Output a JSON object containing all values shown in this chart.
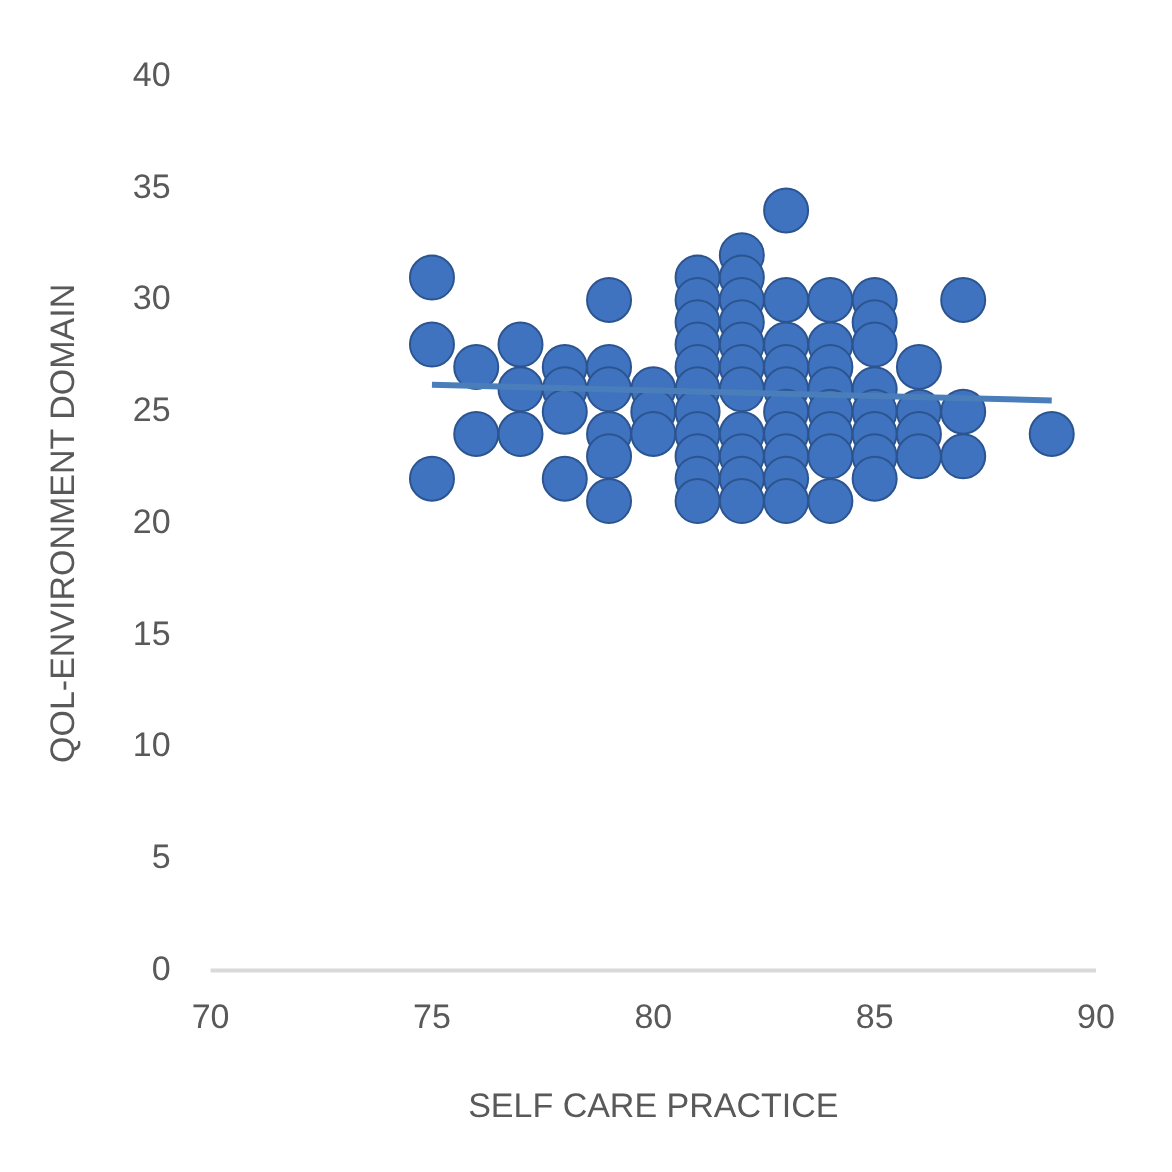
{
  "chart_data": {
    "type": "scatter",
    "xlabel": "SELF CARE PRACTICE",
    "ylabel": "QOL-ENVIRONMENT DOMAIN",
    "xlim": [
      70,
      90
    ],
    "xticks": [
      70,
      75,
      80,
      85,
      90
    ],
    "ylim": [
      0,
      40
    ],
    "yticks": [
      0,
      5,
      10,
      15,
      20,
      25,
      30,
      35,
      40
    ],
    "grid": false,
    "legend": false,
    "marker": "circle",
    "series": [
      {
        "color": "#3f73c0",
        "x": [
          75,
          75,
          75,
          76,
          76,
          77,
          77,
          77,
          78,
          78,
          78,
          78,
          79,
          79,
          79,
          79,
          79,
          79,
          80,
          80,
          80,
          81,
          81,
          81,
          81,
          81,
          81,
          81,
          81,
          81,
          81,
          81,
          82,
          82,
          82,
          82,
          82,
          82,
          82,
          82,
          82,
          82,
          82,
          83,
          83,
          83,
          83,
          83,
          83,
          83,
          83,
          83,
          83,
          84,
          84,
          84,
          84,
          84,
          84,
          84,
          84,
          85,
          85,
          85,
          85,
          85,
          85,
          85,
          85,
          86,
          86,
          86,
          86,
          87,
          87,
          87,
          89
        ],
        "values": [
          31,
          28,
          22,
          27,
          24,
          28,
          26,
          24,
          27,
          26,
          25,
          22,
          30,
          27,
          26,
          24,
          23,
          21,
          26,
          25,
          24,
          31,
          30,
          29,
          28,
          27,
          26,
          25,
          24,
          23,
          22,
          21,
          32,
          31,
          30,
          29,
          28,
          27,
          26,
          24,
          23,
          22,
          21,
          34,
          30,
          28,
          27,
          26,
          25,
          24,
          23,
          22,
          21,
          30,
          28,
          27,
          26,
          25,
          24,
          23,
          21,
          30,
          29,
          28,
          26,
          25,
          24,
          23,
          22,
          27,
          25,
          24,
          23,
          30,
          25,
          23,
          24
        ]
      },
      {
        "type": "line",
        "color": "#4a7ebb",
        "marker": "none",
        "x": [
          75,
          89
        ],
        "values": [
          26.2,
          25.5
        ]
      }
    ]
  }
}
